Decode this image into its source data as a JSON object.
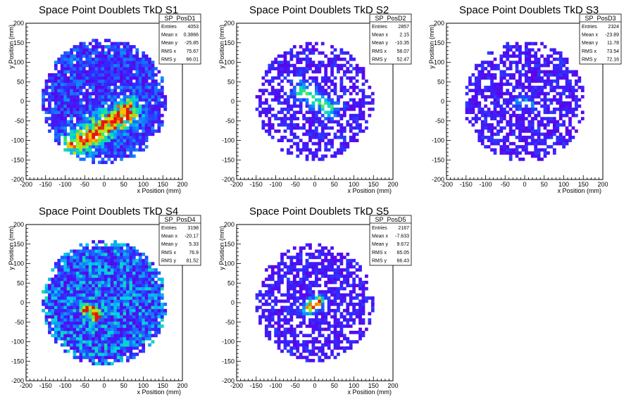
{
  "chart_data": [
    {
      "type": "heatmap",
      "name": "SP_PosD1",
      "title": "Space Point Doublets TkD S1",
      "xlabel": "x Position (mm)",
      "ylabel": "y Position (mm)",
      "xlim": [
        -200,
        200
      ],
      "ylim": [
        -200,
        200
      ],
      "ticks": [
        "-200",
        "-150",
        "-100",
        "-50",
        "0",
        "50",
        "100",
        "150",
        "200"
      ],
      "stats": [
        {
          "label": "Entries",
          "value": "4053"
        },
        {
          "label": "Mean x",
          "value": "0.3866"
        },
        {
          "label": "Mean y",
          "value": "-25.85"
        },
        {
          "label": "RMS x",
          "value": "75.67"
        },
        {
          "label": "RMS y",
          "value": "66.01"
        }
      ],
      "disk_radius": 160,
      "hot_band": {
        "x1": -70,
        "y1": -110,
        "x2": 60,
        "y2": -25,
        "width": 22,
        "peak": 1.0
      },
      "background_level": 0.55
    },
    {
      "type": "heatmap",
      "name": "SP_PosD2",
      "title": "Space Point Doublets TkD S2",
      "xlabel": "x Position (mm)",
      "ylabel": "y Position (mm)",
      "xlim": [
        -200,
        200
      ],
      "ylim": [
        -200,
        200
      ],
      "ticks": [
        "-200",
        "-150",
        "-100",
        "-50",
        "0",
        "50",
        "100",
        "150",
        "200"
      ],
      "stats": [
        {
          "label": "Entries",
          "value": "2857"
        },
        {
          "label": "Mean x",
          "value": "2.15"
        },
        {
          "label": "Mean y",
          "value": "-10.35"
        },
        {
          "label": "RMS x",
          "value": "58.07"
        },
        {
          "label": "RMS y",
          "value": "52.47"
        }
      ],
      "disk_radius": 150,
      "hot_band": {
        "x1": -35,
        "y1": 30,
        "x2": 40,
        "y2": -20,
        "width": 16,
        "peak": 0.6
      },
      "background_level": 0.3
    },
    {
      "type": "heatmap",
      "name": "SP_PosD3",
      "title": "Space Point Doublets TkD S3",
      "xlabel": "x Position (mm)",
      "ylabel": "y Position (mm)",
      "xlim": [
        -200,
        200
      ],
      "ylim": [
        -200,
        200
      ],
      "ticks": [
        "-200",
        "-150",
        "-100",
        "-50",
        "0",
        "50",
        "100",
        "150",
        "200"
      ],
      "stats": [
        {
          "label": "Entries",
          "value": "2324"
        },
        {
          "label": "Mean x",
          "value": "-23.89"
        },
        {
          "label": "Mean y",
          "value": "11.78"
        },
        {
          "label": "RMS x",
          "value": "73.54"
        },
        {
          "label": "RMS y",
          "value": "72.16"
        }
      ],
      "disk_radius": 155,
      "hot_band": {
        "x1": -15,
        "y1": 0,
        "x2": 10,
        "y2": -5,
        "width": 10,
        "peak": 0.45
      },
      "background_level": 0.35
    },
    {
      "type": "heatmap",
      "name": "SP_PosD4",
      "title": "Space Point Doublets TkD S4",
      "xlabel": "x Position (mm)",
      "ylabel": "y Position (mm)",
      "xlim": [
        -200,
        200
      ],
      "ylim": [
        -200,
        200
      ],
      "ticks": [
        "-200",
        "-150",
        "-100",
        "-50",
        "0",
        "50",
        "100",
        "150",
        "200"
      ],
      "stats": [
        {
          "label": "Entries",
          "value": "3198"
        },
        {
          "label": "Mean x",
          "value": "-20.17"
        },
        {
          "label": "Mean y",
          "value": "5.33"
        },
        {
          "label": "RMS x",
          "value": "76.9"
        },
        {
          "label": "RMS y",
          "value": "81.52"
        }
      ],
      "disk_radius": 160,
      "hot_band": {
        "x1": -40,
        "y1": -20,
        "x2": -20,
        "y2": -30,
        "width": 12,
        "peak": 0.9
      },
      "background_level": 0.7
    },
    {
      "type": "heatmap",
      "name": "SP_PosD5",
      "title": "Space Point Doublets TkD S5",
      "xlabel": "x Position (mm)",
      "ylabel": "y Position (mm)",
      "xlim": [
        -200,
        200
      ],
      "ylim": [
        -200,
        200
      ],
      "ticks": [
        "-200",
        "-150",
        "-100",
        "-50",
        "0",
        "50",
        "100",
        "150",
        "200"
      ],
      "stats": [
        {
          "label": "Entries",
          "value": "2167"
        },
        {
          "label": "Mean x",
          "value": "-7.633"
        },
        {
          "label": "Mean y",
          "value": "9.672"
        },
        {
          "label": "RMS x",
          "value": "65.05"
        },
        {
          "label": "RMS y",
          "value": "66.43"
        }
      ],
      "disk_radius": 150,
      "hot_band": {
        "x1": -15,
        "y1": -15,
        "x2": 10,
        "y2": 5,
        "width": 10,
        "peak": 1.0
      },
      "background_level": 0.35
    }
  ]
}
